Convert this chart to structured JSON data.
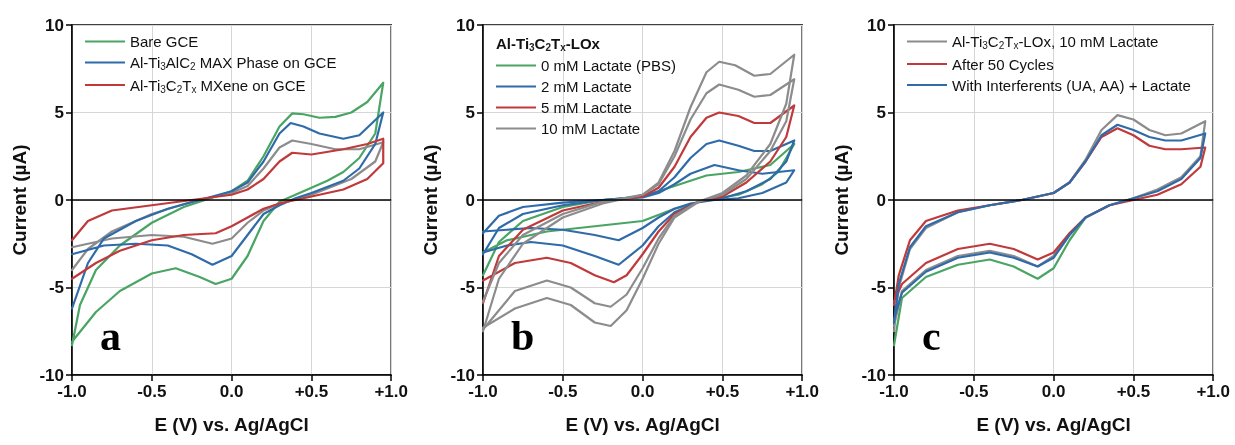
{
  "chart_data": [
    {
      "type": "line",
      "xlabel": "E (V) vs. Ag/AgCl",
      "ylabel": "Current (µA)",
      "xlim": [
        -1,
        1
      ],
      "ylim": [
        -10,
        10
      ],
      "xticks": [
        {
          "value": -1,
          "label": "-1.0"
        },
        {
          "value": -0.5,
          "label": "-0.5"
        },
        {
          "value": 0,
          "label": "0.0"
        },
        {
          "value": 0.5,
          "label": "+0.5"
        },
        {
          "value": 1,
          "label": "+1.0"
        }
      ],
      "yticks": [
        -10,
        -5,
        0,
        5,
        10
      ],
      "grid": true,
      "legend": "top left",
      "marker": "none",
      "annotations": [
        "a"
      ],
      "ref_lines": [
        {
          "axis": "y",
          "value": 0,
          "color": "#000000"
        }
      ],
      "series": [
        {
          "name": "Bare GCE",
          "color": "#4aa564",
          "x": [
            -1,
            -0.95,
            -0.85,
            -0.7,
            -0.5,
            -0.3,
            -0.1,
            0,
            0.1,
            0.2,
            0.3,
            0.38,
            0.45,
            0.55,
            0.65,
            0.75,
            0.85,
            0.95,
            0.9,
            0.8,
            0.7,
            0.6,
            0.5,
            0.4,
            0.3,
            0.2,
            0.1,
            0,
            -0.1,
            -0.2,
            -0.35,
            -0.5,
            -0.7,
            -0.85,
            -1
          ],
          "values": [
            -8.3,
            -6,
            -4,
            -2.6,
            -1.3,
            -0.4,
            0.2,
            0.5,
            1.1,
            2.5,
            4.2,
            4.95,
            4.9,
            4.7,
            4.75,
            5,
            5.6,
            6.7,
            3.8,
            2.4,
            1.6,
            1.1,
            0.7,
            0.3,
            -0.1,
            -1.2,
            -3.2,
            -4.5,
            -4.8,
            -4.4,
            -3.9,
            -4.2,
            -5.2,
            -6.4,
            -8.1
          ]
        },
        {
          "color": "#8c8c8c",
          "x": [
            -1,
            -0.9,
            -0.75,
            -0.5,
            -0.25,
            0,
            0.1,
            0.2,
            0.3,
            0.38,
            0.5,
            0.65,
            0.8,
            0.95,
            0.9,
            0.75,
            0.5,
            0.3,
            0.2,
            0.1,
            0,
            -0.12,
            -0.3,
            -0.5,
            -0.75,
            -1
          ],
          "values": [
            -4,
            -2.8,
            -1.8,
            -0.8,
            -0.1,
            0.4,
            0.8,
            1.8,
            3,
            3.4,
            3.2,
            2.9,
            2.9,
            3.3,
            2.2,
            1.2,
            0.3,
            -0.2,
            -0.6,
            -1.3,
            -2.2,
            -2.5,
            -2.1,
            -2,
            -2.2,
            -2.7
          ]
        },
        {
          "name": "Al-Ti$_{3}$AlC$_{2}$ MAX Phase on GCE",
          "color": "#2f6ba8",
          "x": [
            -1,
            -0.9,
            -0.8,
            -0.6,
            -0.4,
            -0.2,
            0,
            0.1,
            0.2,
            0.3,
            0.37,
            0.45,
            0.55,
            0.7,
            0.8,
            0.95,
            0.9,
            0.8,
            0.7,
            0.5,
            0.4,
            0.3,
            0.2,
            0.1,
            0,
            -0.12,
            -0.25,
            -0.4,
            -0.6,
            -0.8,
            -1
          ],
          "values": [
            -6.2,
            -3.6,
            -2.2,
            -1.2,
            -0.5,
            0,
            0.5,
            1,
            2.2,
            3.8,
            4.4,
            4.2,
            3.8,
            3.5,
            3.7,
            5,
            3.2,
            1.8,
            1.1,
            0.4,
            0.1,
            -0.3,
            -0.8,
            -2,
            -3.2,
            -3.7,
            -3.1,
            -2.6,
            -2.5,
            -2.6,
            -3.1
          ]
        },
        {
          "name": "Al-Ti$_{3}$C$_{2}$T$_{x}$ MXene on GCE",
          "color": "#c0393b",
          "x": [
            -1,
            -0.9,
            -0.75,
            -0.5,
            -0.25,
            0,
            0.1,
            0.2,
            0.3,
            0.38,
            0.5,
            0.7,
            0.85,
            0.95,
            0.95,
            0.85,
            0.7,
            0.5,
            0.3,
            0.2,
            0.1,
            0,
            -0.1,
            -0.3,
            -0.5,
            -0.7,
            -0.85,
            -1
          ],
          "values": [
            -2.3,
            -1.2,
            -0.6,
            -0.3,
            0,
            0.3,
            0.6,
            1.2,
            2.2,
            2.7,
            2.6,
            2.9,
            3.2,
            3.5,
            2.1,
            1.2,
            0.6,
            0.2,
            -0.2,
            -0.5,
            -1,
            -1.5,
            -1.9,
            -2,
            -2.3,
            -2.9,
            -3.6,
            -4.5
          ]
        }
      ]
    },
    {
      "type": "line",
      "xlabel": "E (V) vs. Ag/AgCl",
      "ylabel": "Current (µA)",
      "xlim": [
        -1,
        1
      ],
      "ylim": [
        -10,
        10
      ],
      "xticks": [
        {
          "value": -1,
          "label": "-1.0"
        },
        {
          "value": -0.5,
          "label": "-0.5"
        },
        {
          "value": 0,
          "label": "0.0"
        },
        {
          "value": 0.5,
          "label": "+0.5"
        },
        {
          "value": 1,
          "label": "+1.0"
        }
      ],
      "yticks": [
        -10,
        -5,
        0,
        5,
        10
      ],
      "grid": true,
      "legend": "top left",
      "marker": "none",
      "annotations": [
        "b"
      ],
      "legend_title": "Al-Ti$_{3}$C$_{2}$T$_{x}$-LOx",
      "ref_lines": [
        {
          "axis": "y",
          "value": 0,
          "color": "#000000"
        }
      ],
      "series": [
        {
          "name": "0 mM Lactate (PBS)",
          "color": "#4aa564",
          "x": [
            -1,
            -0.9,
            -0.75,
            -0.5,
            -0.25,
            0,
            0.2,
            0.4,
            0.6,
            0.8,
            0.95,
            0.85,
            0.75,
            0.6,
            0.4,
            0.2,
            0,
            -0.3,
            -0.6,
            -0.85,
            -1
          ],
          "values": [
            -4.3,
            -2.4,
            -1.2,
            -0.4,
            0,
            0.2,
            0.8,
            1.4,
            1.6,
            2,
            3.2,
            1.6,
            0.9,
            0.3,
            0,
            -0.5,
            -1.2,
            -1.5,
            -1.8,
            -2.3,
            -3
          ]
        },
        {
          "name": "2 mM Lactate",
          "color": "#2f6ba8",
          "x": [
            -1,
            -0.9,
            -0.75,
            -0.5,
            -0.25,
            0,
            0.1,
            0.2,
            0.3,
            0.45,
            0.6,
            0.75,
            0.95,
            0.9,
            0.75,
            0.6,
            0.45,
            0.3,
            0.2,
            0.1,
            0,
            -0.15,
            -0.3,
            -0.5,
            -0.7,
            -0.85,
            -1
          ],
          "values": [
            -1.9,
            -0.9,
            -0.4,
            -0.15,
            0,
            0.15,
            0.4,
            0.9,
            1.5,
            2,
            1.7,
            1.5,
            1.7,
            1,
            0.4,
            0.1,
            0,
            -0.2,
            -0.5,
            -1,
            -1.6,
            -2.3,
            -2,
            -1.7,
            -1.6,
            -1.7,
            -1.8
          ]
        },
        {
          "color": "#2f6ba8",
          "x": [
            -1,
            -0.9,
            -0.75,
            -0.5,
            -0.25,
            0,
            0.1,
            0.2,
            0.3,
            0.4,
            0.48,
            0.6,
            0.7,
            0.8,
            0.95,
            0.9,
            0.8,
            0.65,
            0.5,
            0.35,
            0.2,
            0.1,
            0,
            -0.15,
            -0.3,
            -0.5,
            -0.7,
            -0.85,
            -1
          ],
          "values": [
            -3.1,
            -1.6,
            -0.8,
            -0.3,
            0,
            0.2,
            0.5,
            1.3,
            2.4,
            3.2,
            3.4,
            3.1,
            2.8,
            2.8,
            3.4,
            2.2,
            1.2,
            0.5,
            0.1,
            -0.1,
            -0.7,
            -1.5,
            -2.6,
            -3.7,
            -3.2,
            -2.6,
            -2.4,
            -2.6,
            -3
          ]
        },
        {
          "name": "5 mM Lactate",
          "color": "#c0393b",
          "x": [
            -1,
            -0.9,
            -0.75,
            -0.5,
            -0.25,
            0,
            0.1,
            0.2,
            0.3,
            0.4,
            0.48,
            0.6,
            0.7,
            0.8,
            0.95,
            0.9,
            0.8,
            0.65,
            0.5,
            0.35,
            0.2,
            0.1,
            0,
            -0.1,
            -0.18,
            -0.3,
            -0.45,
            -0.6,
            -0.8,
            -1
          ],
          "values": [
            -5.9,
            -3.2,
            -1.7,
            -0.6,
            -0.1,
            0.2,
            0.7,
            1.9,
            3.6,
            4.7,
            5,
            4.8,
            4.4,
            4.4,
            5.4,
            3.6,
            2.2,
            1,
            0.2,
            -0.1,
            -0.8,
            -1.8,
            -3.1,
            -4.3,
            -4.7,
            -4.3,
            -3.6,
            -3.3,
            -3.6,
            -4.6
          ]
        },
        {
          "color": "#8c8c8c",
          "x": [
            -1,
            -0.9,
            -0.75,
            -0.5,
            -0.25,
            0,
            0.1,
            0.2,
            0.3,
            0.4,
            0.48,
            0.6,
            0.7,
            0.8,
            0.95,
            0.9,
            0.8,
            0.65,
            0.5,
            0.35,
            0.2,
            0.1,
            0,
            -0.1,
            -0.2,
            -0.3,
            -0.45,
            -0.6,
            -0.8,
            -1
          ],
          "values": [
            -5.8,
            -3.6,
            -2,
            -0.8,
            -0.1,
            0.3,
            0.9,
            2.5,
            4.6,
            6.1,
            6.6,
            6.3,
            5.9,
            6,
            6.9,
            4.5,
            2.8,
            1.2,
            0.3,
            -0.1,
            -0.9,
            -2.2,
            -3.9,
            -5.4,
            -6.1,
            -5.9,
            -5,
            -4.6,
            -5.2,
            -7.4
          ]
        },
        {
          "name": "10 mM Lactate",
          "color": "#8c8c8c",
          "x": [
            -1,
            -0.9,
            -0.75,
            -0.5,
            -0.25,
            0,
            0.1,
            0.2,
            0.3,
            0.4,
            0.48,
            0.58,
            0.7,
            0.8,
            0.95,
            0.9,
            0.8,
            0.65,
            0.5,
            0.35,
            0.2,
            0.1,
            0,
            -0.1,
            -0.2,
            -0.3,
            -0.45,
            -0.6,
            -0.8,
            -1
          ],
          "values": [
            -7.5,
            -4.5,
            -2.5,
            -1,
            -0.2,
            0.3,
            1,
            2.8,
            5.3,
            7.3,
            7.9,
            7.7,
            7.1,
            7.2,
            8.3,
            5.5,
            3.2,
            1.4,
            0.4,
            -0.1,
            -1,
            -2.5,
            -4.5,
            -6.3,
            -7.2,
            -7,
            -6,
            -5.6,
            -6.2,
            -7.3
          ]
        }
      ]
    },
    {
      "type": "line",
      "xlabel": "E (V) vs. Ag/AgCl",
      "ylabel": "Current (µA)",
      "xlim": [
        -1,
        1
      ],
      "ylim": [
        -10,
        10
      ],
      "xticks": [
        {
          "value": -1,
          "label": "-1.0"
        },
        {
          "value": -0.5,
          "label": "-0.5"
        },
        {
          "value": 0,
          "label": "0.0"
        },
        {
          "value": 0.5,
          "label": "+0.5"
        },
        {
          "value": 1,
          "label": "+1.0"
        }
      ],
      "yticks": [
        -10,
        -5,
        0,
        5,
        10
      ],
      "grid": true,
      "legend": "top left",
      "marker": "none",
      "annotations": [
        "c"
      ],
      "ref_lines": [
        {
          "axis": "y",
          "value": 0,
          "color": "#000000"
        }
      ],
      "series": [
        {
          "color": "#4aa564",
          "x": [
            0.2,
            0.1,
            0,
            -0.1,
            -0.25,
            -0.4,
            -0.6,
            -0.8,
            -0.95,
            -1
          ],
          "values": [
            -1,
            -2.3,
            -3.9,
            -4.5,
            -3.8,
            -3.4,
            -3.7,
            -4.4,
            -5.6,
            -8.3
          ]
        },
        {
          "name": "Al-Ti$_{3}$C$_{2}$T$_{x}$-LOx, 10 mM Lactate",
          "color": "#8c8c8c",
          "x": [
            -1,
            -0.97,
            -0.9,
            -0.8,
            -0.6,
            -0.4,
            -0.2,
            0,
            0.1,
            0.2,
            0.3,
            0.4,
            0.5,
            0.6,
            0.7,
            0.8,
            0.95,
            0.92,
            0.8,
            0.65,
            0.5,
            0.35,
            0.2,
            0.1,
            0,
            -0.1,
            -0.25,
            -0.4,
            -0.6,
            -0.8,
            -0.95,
            -1
          ],
          "values": [
            -7.5,
            -5,
            -2.8,
            -1.6,
            -0.7,
            -0.3,
            0,
            0.4,
            1,
            2.3,
            4,
            4.85,
            4.6,
            4,
            3.7,
            3.8,
            4.5,
            2.5,
            1.3,
            0.6,
            0.1,
            -0.3,
            -1,
            -1.9,
            -3.2,
            -3.8,
            -3.2,
            -2.9,
            -3.2,
            -4,
            -5.2,
            -7.2
          ]
        },
        {
          "name": "After 50 Cycles",
          "color": "#c0393b",
          "x": [
            -1,
            -0.97,
            -0.9,
            -0.8,
            -0.6,
            -0.4,
            -0.2,
            0,
            0.1,
            0.2,
            0.3,
            0.4,
            0.5,
            0.6,
            0.7,
            0.8,
            0.95,
            0.92,
            0.8,
            0.65,
            0.5,
            0.35,
            0.2,
            0.1,
            0,
            -0.1,
            -0.25,
            -0.4,
            -0.6,
            -0.8,
            -0.95,
            -1
          ],
          "values": [
            -6,
            -4.3,
            -2.3,
            -1.2,
            -0.6,
            -0.3,
            0,
            0.4,
            1,
            2.2,
            3.6,
            4.1,
            3.7,
            3.1,
            2.9,
            2.9,
            3,
            1.9,
            0.9,
            0.3,
            0,
            -0.3,
            -1,
            -1.9,
            -3,
            -3.4,
            -2.8,
            -2.5,
            -2.8,
            -3.6,
            -4.8,
            -5.8
          ]
        },
        {
          "name": "With Interferents (UA, AA) + Lactate",
          "color": "#2f6ba8",
          "x": [
            -1,
            -0.97,
            -0.9,
            -0.8,
            -0.6,
            -0.4,
            -0.2,
            0,
            0.1,
            0.2,
            0.3,
            0.4,
            0.5,
            0.6,
            0.7,
            0.8,
            0.95,
            0.92,
            0.8,
            0.65,
            0.5,
            0.35,
            0.2,
            0.1,
            0,
            -0.1,
            -0.25,
            -0.4,
            -0.6,
            -0.8,
            -0.95,
            -1
          ],
          "values": [
            -7,
            -4.8,
            -2.7,
            -1.5,
            -0.7,
            -0.3,
            0,
            0.4,
            1,
            2.2,
            3.7,
            4.3,
            4,
            3.6,
            3.4,
            3.4,
            3.8,
            2.4,
            1.2,
            0.5,
            0.1,
            -0.3,
            -1,
            -2,
            -3.3,
            -3.8,
            -3.3,
            -3,
            -3.3,
            -4.1,
            -5.3,
            -6.8
          ]
        }
      ]
    }
  ]
}
